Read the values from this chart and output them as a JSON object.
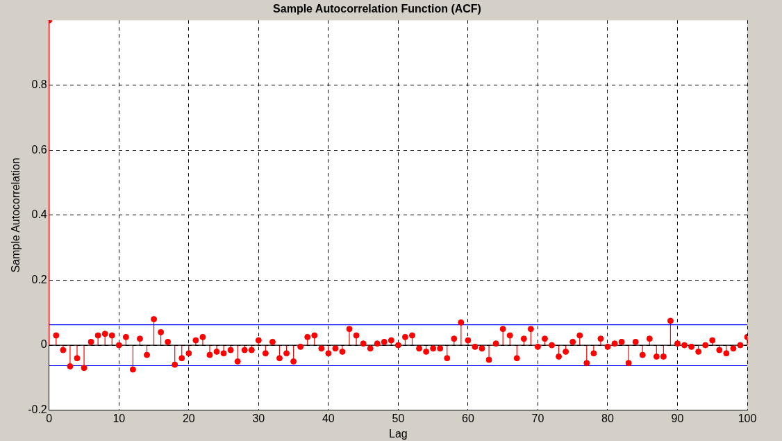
{
  "chart_data": {
    "type": "lollipop",
    "title": "Sample Autocorrelation Function (ACF)",
    "xlabel": "Lag",
    "ylabel": "Sample Autocorrelation",
    "x": [
      0,
      1,
      2,
      3,
      4,
      5,
      6,
      7,
      8,
      9,
      10,
      11,
      12,
      13,
      14,
      15,
      16,
      17,
      18,
      19,
      20,
      21,
      22,
      23,
      24,
      25,
      26,
      27,
      28,
      29,
      30,
      31,
      32,
      33,
      34,
      35,
      36,
      37,
      38,
      39,
      40,
      41,
      42,
      43,
      44,
      45,
      46,
      47,
      48,
      49,
      50,
      51,
      52,
      53,
      54,
      55,
      56,
      57,
      58,
      59,
      60,
      61,
      62,
      63,
      64,
      65,
      66,
      67,
      68,
      69,
      70,
      71,
      72,
      73,
      74,
      75,
      76,
      77,
      78,
      79,
      80,
      81,
      82,
      83,
      84,
      85,
      86,
      87,
      88,
      89,
      90,
      91,
      92,
      93,
      94,
      95,
      96,
      97,
      98,
      99,
      100
    ],
    "series": [
      {
        "color": "#ff0000",
        "values": [
          1,
          0.03,
          -0.015,
          -0.065,
          -0.04,
          -0.07,
          0.01,
          0.03,
          0.035,
          0.03,
          0,
          0.025,
          -0.075,
          0.02,
          -0.03,
          0.08,
          0.04,
          0.01,
          -0.06,
          -0.04,
          -0.025,
          0.015,
          0.025,
          -0.03,
          -0.02,
          -0.025,
          -0.015,
          -0.05,
          -0.015,
          -0.015,
          0.015,
          -0.025,
          0.01,
          -0.04,
          -0.025,
          -0.05,
          -0.005,
          0.025,
          0.03,
          -0.01,
          -0.025,
          -0.01,
          -0.02,
          0.05,
          0.03,
          0.005,
          -0.01,
          0.005,
          0.01,
          0.015,
          0,
          0.025,
          0.03,
          -0.01,
          -0.02,
          -0.01,
          -0.01,
          -0.04,
          0.02,
          0.07,
          0.015,
          -0.005,
          -0.01,
          -0.045,
          0.005,
          0.05,
          0.03,
          -0.04,
          0.02,
          0.05,
          -0.005,
          0.02,
          0,
          -0.035,
          -0.02,
          0.01,
          0.03,
          -0.055,
          -0.025,
          0.02,
          -0.005,
          0.005,
          0.01,
          -0.055,
          0.01,
          -0.03,
          0.02,
          -0.035,
          -0.035,
          0.075,
          0.005,
          0,
          -0.005,
          -0.02,
          0,
          0.015,
          -0.015,
          -0.025,
          -0.01,
          0,
          0.025
        ]
      }
    ],
    "xlim": [
      0,
      100
    ],
    "xticks": [
      0,
      10,
      20,
      30,
      40,
      50,
      60,
      70,
      80,
      90,
      100
    ],
    "ylim": [
      -0.2,
      1
    ],
    "yticks": [
      -0.2,
      0,
      0.2,
      0.4,
      0.6,
      0.8
    ],
    "ref_lines": [
      {
        "axis": "y",
        "value": 0.063,
        "color": "#0000ff"
      },
      {
        "axis": "y",
        "value": -0.063,
        "color": "#0000ff"
      }
    ],
    "grid": true,
    "marker": "circle"
  }
}
